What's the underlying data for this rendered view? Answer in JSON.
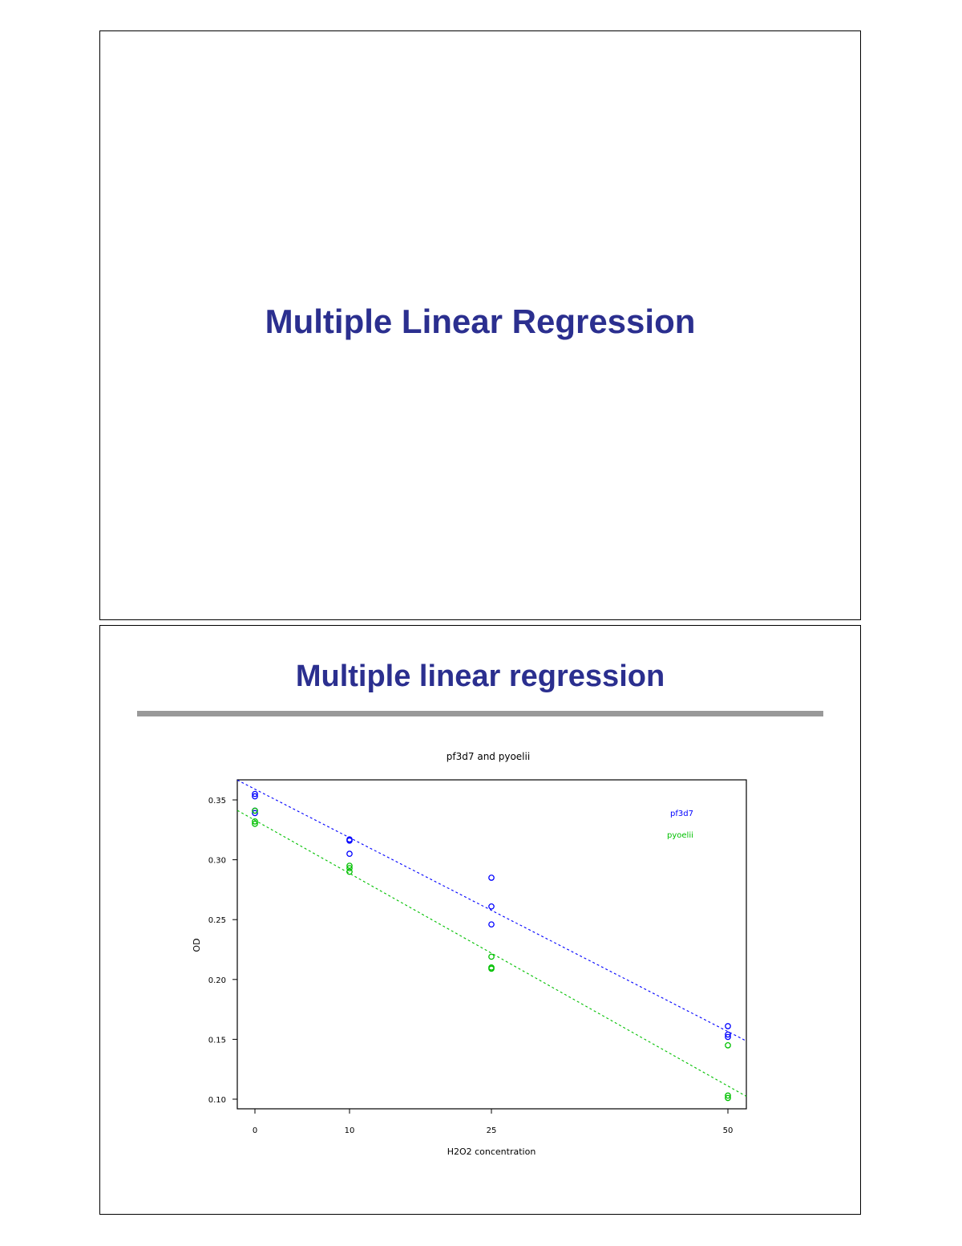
{
  "slides": [
    {
      "title": "Multiple Linear Regression"
    },
    {
      "title": "Multiple linear regression"
    }
  ],
  "chart_data": {
    "type": "scatter",
    "title": "pf3d7 and pyoelii",
    "xlabel": "H2O2 concentration",
    "ylabel": "OD",
    "x_ticks": [
      0,
      10,
      25,
      50
    ],
    "y_ticks": [
      "0.10",
      "0.15",
      "0.20",
      "0.25",
      "0.30",
      "0.35"
    ],
    "xlim": [
      -1.8,
      52.0
    ],
    "ylim": [
      0.095,
      0.334
    ],
    "legend_placement": "top-right",
    "series": [
      {
        "name": "pf3d7",
        "color": "#0000ff",
        "points": [
          [
            0,
            0.355
          ],
          [
            0,
            0.353
          ],
          [
            0,
            0.341
          ],
          [
            0,
            0.339
          ],
          [
            10,
            0.317
          ],
          [
            10,
            0.316
          ],
          [
            10,
            0.305
          ],
          [
            25,
            0.285
          ],
          [
            25,
            0.261
          ],
          [
            25,
            0.246
          ],
          [
            50,
            0.161
          ],
          [
            50,
            0.154
          ],
          [
            50,
            0.152
          ]
        ],
        "fit": {
          "intercept": 0.359,
          "slope": -0.00405
        }
      },
      {
        "name": "pyoelii",
        "color": "#00c000",
        "points": [
          [
            0,
            0.341
          ],
          [
            0,
            0.332
          ],
          [
            0,
            0.33
          ],
          [
            10,
            0.295
          ],
          [
            10,
            0.293
          ],
          [
            10,
            0.29
          ],
          [
            25,
            0.219
          ],
          [
            25,
            0.21
          ],
          [
            25,
            0.209
          ],
          [
            50,
            0.145
          ],
          [
            50,
            0.103
          ],
          [
            50,
            0.101
          ]
        ],
        "fit": {
          "intercept": 0.333,
          "slope": -0.00444
        }
      }
    ]
  }
}
